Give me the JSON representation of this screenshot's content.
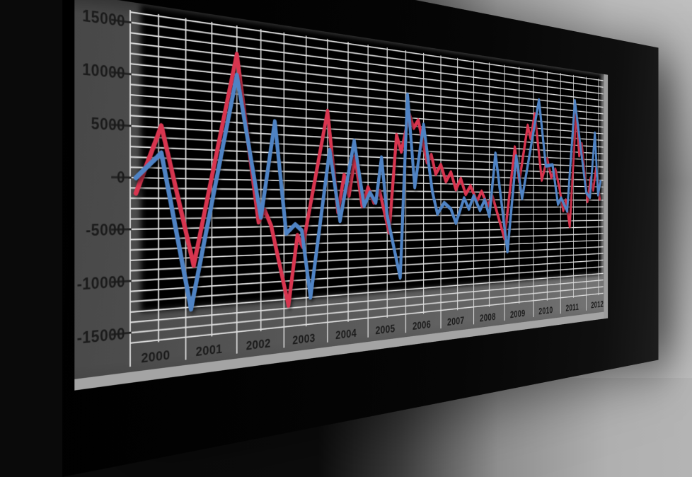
{
  "chart_data": {
    "type": "line",
    "title": "",
    "xlabel": "",
    "ylabel": "",
    "x_tick_labels": [
      "2000",
      "2001",
      "2002",
      "2003",
      "2004",
      "2005",
      "2006",
      "2007",
      "2008",
      "2009",
      "2010",
      "2011",
      "2012"
    ],
    "y_tick_labels": [
      "15000",
      "10000",
      "5000",
      "0",
      "-5000",
      "-10000",
      "-15000"
    ],
    "y_tick_values": [
      15000,
      10000,
      5000,
      0,
      -5000,
      -10000,
      -15000
    ],
    "x_range": [
      2000,
      2012.7
    ],
    "y_range": [
      -16200,
      16200
    ],
    "x_grid_step": 0.5,
    "y_grid_step": 1000,
    "grid": true,
    "legend": false,
    "series": [
      {
        "name": "red",
        "color": "#d83450",
        "points": [
          [
            2000.1,
            -1500
          ],
          [
            2000.55,
            5200
          ],
          [
            2001.15,
            -8800
          ],
          [
            2002.0,
            13200
          ],
          [
            2002.45,
            -4500
          ],
          [
            2002.58,
            -3200
          ],
          [
            2002.72,
            -4900
          ],
          [
            2003.1,
            -13700
          ],
          [
            2003.3,
            -6000
          ],
          [
            2003.42,
            -7300
          ],
          [
            2004.0,
            8000
          ],
          [
            2004.25,
            -3500
          ],
          [
            2004.4,
            800
          ],
          [
            2004.52,
            -1600
          ],
          [
            2004.67,
            3000
          ],
          [
            2004.85,
            -2800
          ],
          [
            2005.0,
            -600
          ],
          [
            2005.15,
            -2400
          ],
          [
            2005.3,
            -1000
          ],
          [
            2005.55,
            -6000
          ],
          [
            2005.75,
            5800
          ],
          [
            2005.88,
            3800
          ],
          [
            2006.1,
            8500
          ],
          [
            2006.22,
            6800
          ],
          [
            2006.35,
            7800
          ],
          [
            2006.6,
            2600
          ],
          [
            2006.72,
            3600
          ],
          [
            2006.85,
            1200
          ],
          [
            2007.0,
            2400
          ],
          [
            2007.15,
            300
          ],
          [
            2007.3,
            1500
          ],
          [
            2007.45,
            -700
          ],
          [
            2007.6,
            700
          ],
          [
            2007.75,
            -1300
          ],
          [
            2007.9,
            -200
          ],
          [
            2008.1,
            -2200
          ],
          [
            2008.25,
            -900
          ],
          [
            2008.45,
            -2800
          ],
          [
            2008.6,
            -1500
          ],
          [
            2009.0,
            -7200
          ],
          [
            2009.35,
            5200
          ],
          [
            2009.5,
            500
          ],
          [
            2009.8,
            8300
          ],
          [
            2009.9,
            6500
          ],
          [
            2010.05,
            10000
          ],
          [
            2010.3,
            800
          ],
          [
            2010.5,
            3800
          ],
          [
            2010.65,
            1200
          ],
          [
            2010.8,
            2400
          ],
          [
            2010.95,
            -200
          ],
          [
            2011.1,
            -3500
          ],
          [
            2011.2,
            -2000
          ],
          [
            2011.35,
            -5800
          ],
          [
            2011.6,
            11000
          ],
          [
            2011.72,
            4500
          ],
          [
            2011.82,
            6300
          ],
          [
            2012.05,
            -2200
          ],
          [
            2012.18,
            1300
          ],
          [
            2012.28,
            -500
          ],
          [
            2012.4,
            2800
          ],
          [
            2012.55,
            -1800
          ]
        ]
      },
      {
        "name": "blue",
        "color": "#4f83c4",
        "points": [
          [
            2000.1,
            0
          ],
          [
            2000.55,
            2500
          ],
          [
            2001.1,
            -13200
          ],
          [
            2002.0,
            11000
          ],
          [
            2002.5,
            -4000
          ],
          [
            2002.8,
            6400
          ],
          [
            2003.05,
            -5800
          ],
          [
            2003.25,
            -4800
          ],
          [
            2003.4,
            -5500
          ],
          [
            2003.6,
            -13000
          ],
          [
            2004.05,
            3600
          ],
          [
            2004.3,
            -4500
          ],
          [
            2004.65,
            4800
          ],
          [
            2004.9,
            -2800
          ],
          [
            2005.05,
            -1200
          ],
          [
            2005.2,
            -2400
          ],
          [
            2005.35,
            3000
          ],
          [
            2005.5,
            -4000
          ],
          [
            2005.85,
            -11500
          ],
          [
            2006.05,
            10800
          ],
          [
            2006.25,
            -500
          ],
          [
            2006.5,
            7300
          ],
          [
            2006.75,
            -1000
          ],
          [
            2006.9,
            -3800
          ],
          [
            2007.1,
            -2400
          ],
          [
            2007.3,
            -3200
          ],
          [
            2007.45,
            -5000
          ],
          [
            2007.7,
            -1800
          ],
          [
            2007.85,
            -3200
          ],
          [
            2008.0,
            -1500
          ],
          [
            2008.2,
            -3400
          ],
          [
            2008.35,
            -2000
          ],
          [
            2008.5,
            -4200
          ],
          [
            2008.7,
            4200
          ],
          [
            2009.1,
            -9000
          ],
          [
            2009.4,
            4000
          ],
          [
            2009.6,
            -1800
          ],
          [
            2010.2,
            12000
          ],
          [
            2010.45,
            2800
          ],
          [
            2010.7,
            3000
          ],
          [
            2010.9,
            -2600
          ],
          [
            2011.02,
            -1700
          ],
          [
            2011.25,
            -3600
          ],
          [
            2011.55,
            12500
          ],
          [
            2012.0,
            -900
          ],
          [
            2012.15,
            -1600
          ],
          [
            2012.35,
            8000
          ],
          [
            2012.48,
            -1200
          ],
          [
            2012.58,
            800
          ]
        ]
      }
    ]
  },
  "colors": {
    "red_series": "#d83450",
    "blue_series": "#4f83c4",
    "grid": "#dcdcdc",
    "plot_backdrop": "#050505",
    "screen_face": "#5e5e5e",
    "bezel": "#0a0a0a",
    "wall": "#a8a8a8",
    "axis_text": "#1b1b1b",
    "edge_highlight": "#a4a4a4"
  }
}
